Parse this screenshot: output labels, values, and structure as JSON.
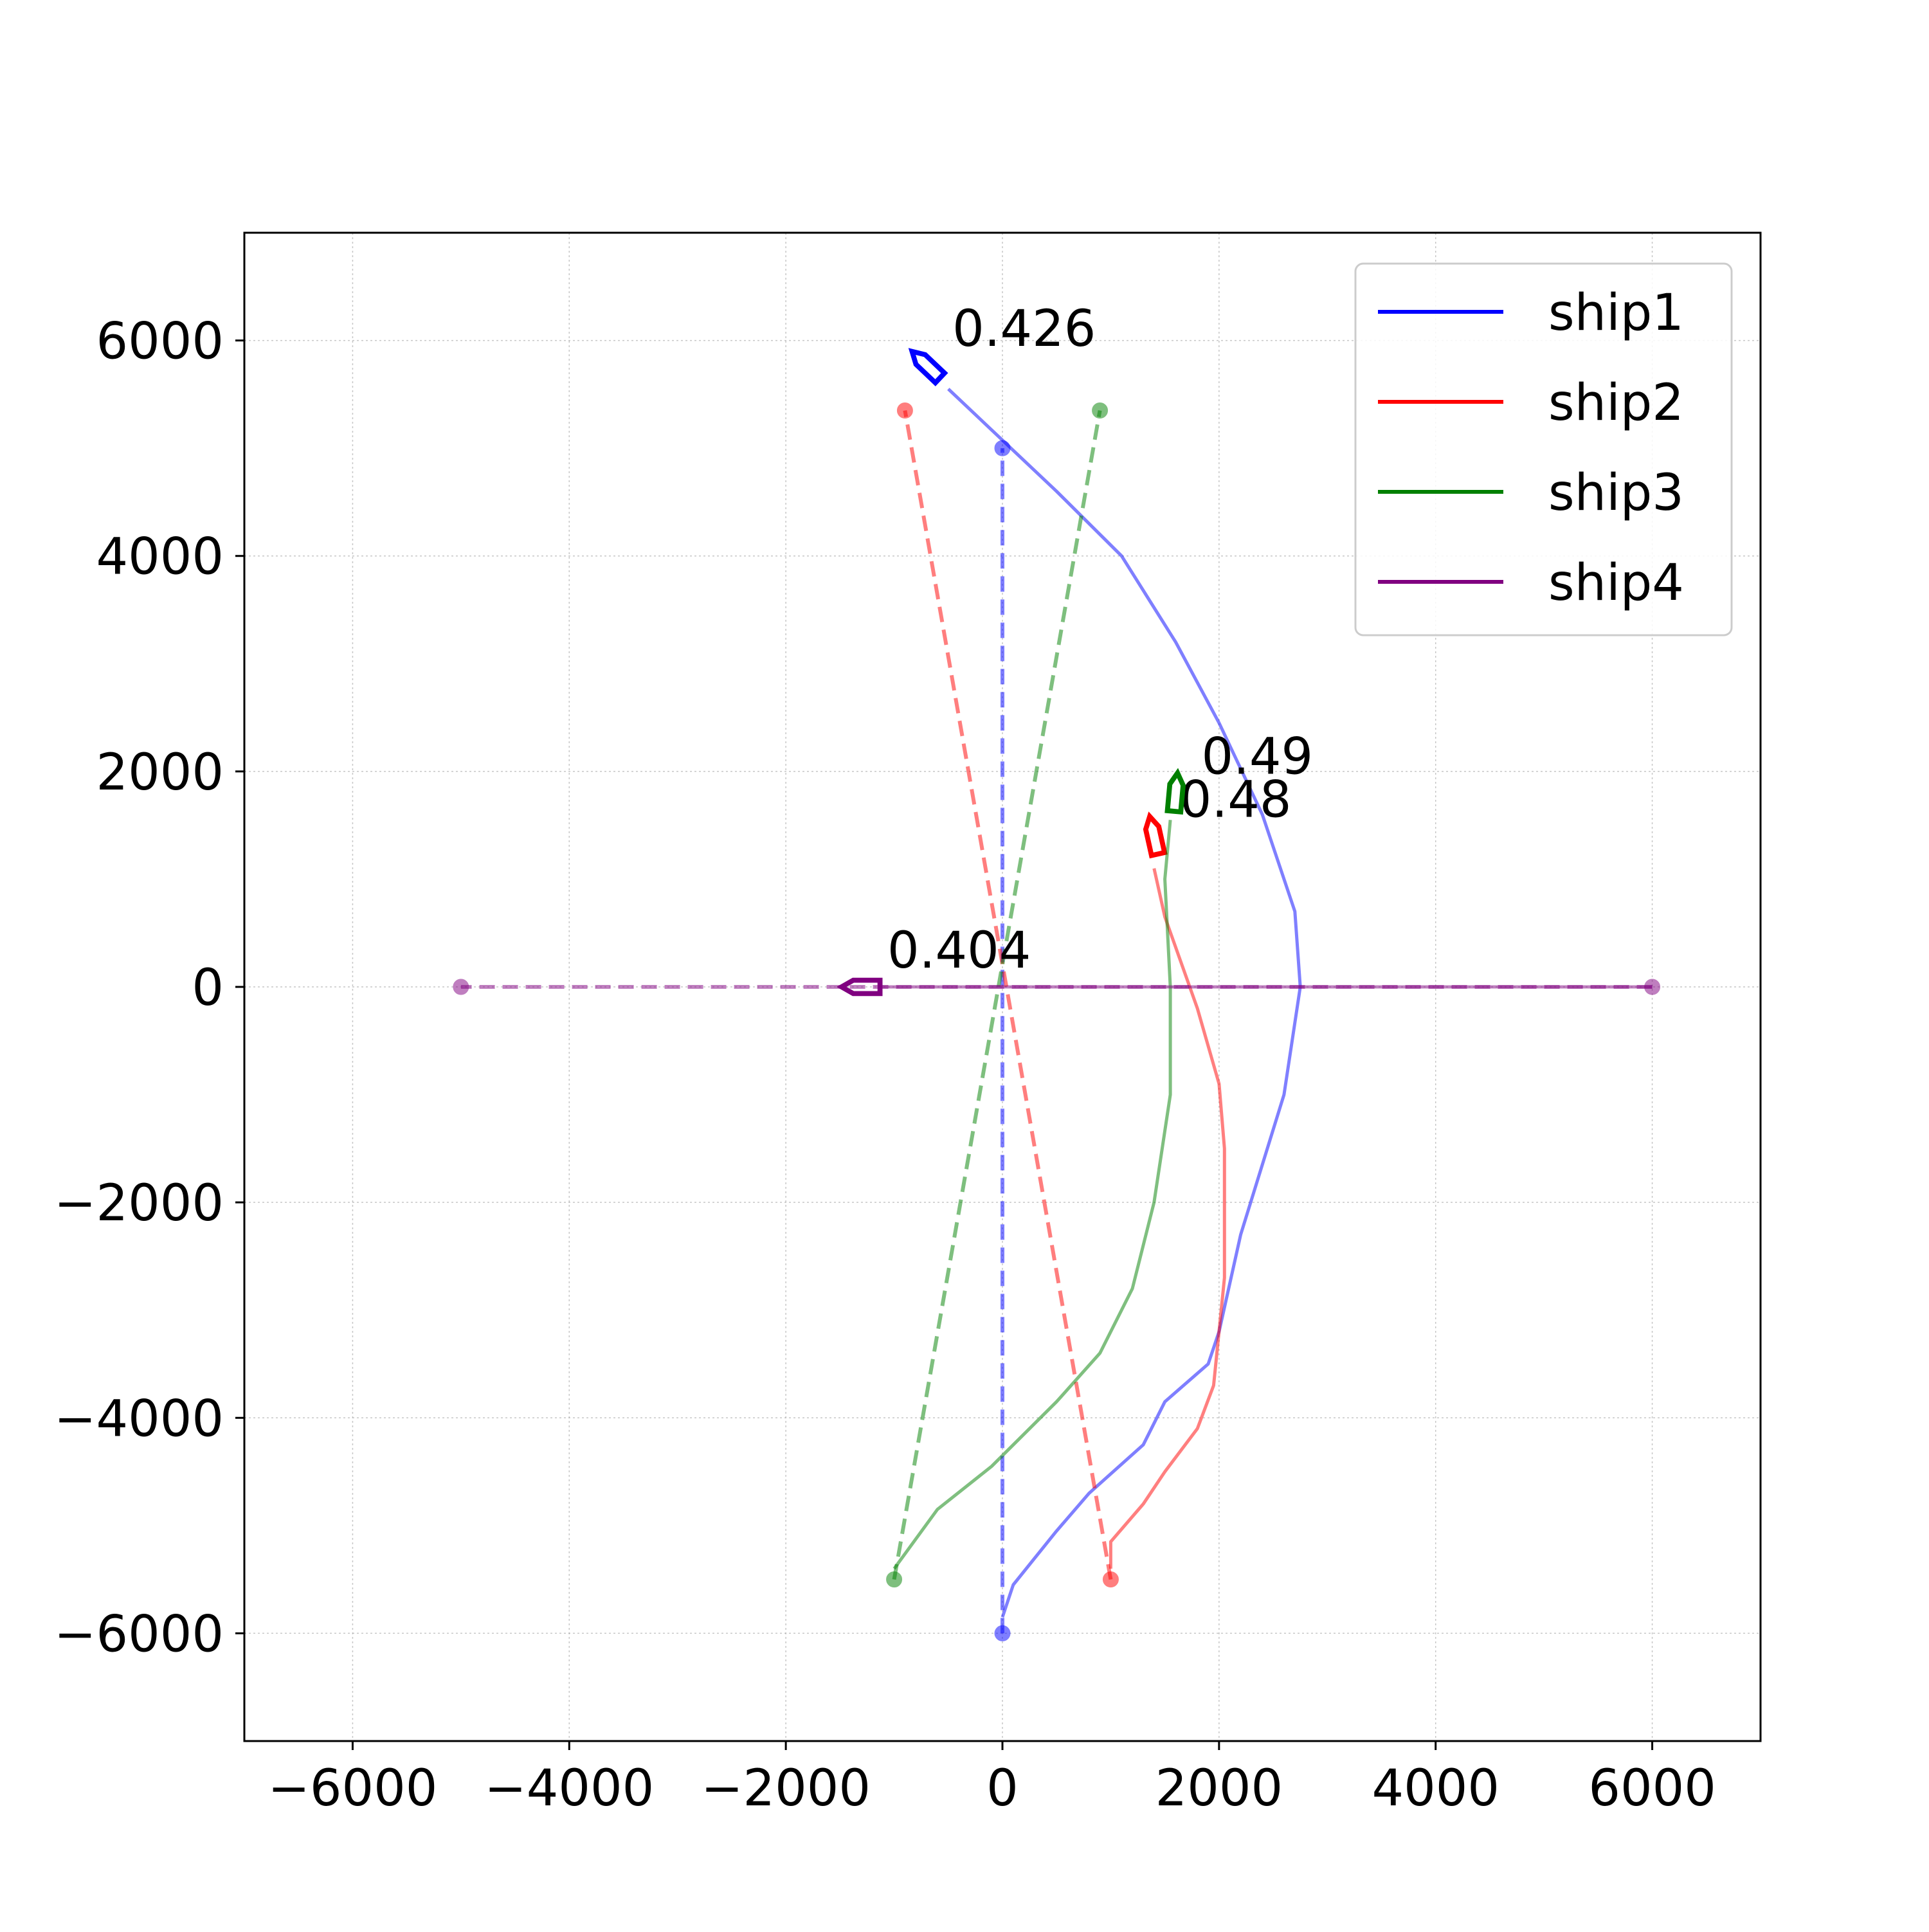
{
  "chart_data": {
    "type": "line",
    "title": "",
    "xlabel": "",
    "ylabel": "",
    "xlim": [
      -7000,
      7000
    ],
    "ylim": [
      -7000,
      7000
    ],
    "xticks": [
      -6000,
      -4000,
      -2000,
      0,
      2000,
      4000,
      6000
    ],
    "yticks": [
      -6000,
      -4000,
      -2000,
      0,
      2000,
      4000,
      6000
    ],
    "xtick_labels": [
      "−6000",
      "−4000",
      "−2000",
      "0",
      "2000",
      "4000",
      "6000"
    ],
    "ytick_labels": [
      "−6000",
      "−4000",
      "−2000",
      "0",
      "2000",
      "4000",
      "6000"
    ],
    "grid": true,
    "legend_position": "top-right",
    "series": [
      {
        "name": "ship1",
        "color": "#0000ff",
        "start": [
          0,
          -6000
        ],
        "goal": [
          0,
          5000
        ],
        "trajectory": [
          [
            0,
            -5850
          ],
          [
            100,
            -5550
          ],
          [
            300,
            -5300
          ],
          [
            500,
            -5050
          ],
          [
            800,
            -4700
          ],
          [
            1300,
            -4250
          ],
          [
            1500,
            -3850
          ],
          [
            1900,
            -3500
          ],
          [
            2000,
            -3200
          ],
          [
            2200,
            -2300
          ],
          [
            2600,
            -1000
          ],
          [
            2750,
            0
          ],
          [
            2700,
            700
          ],
          [
            2400,
            1600
          ],
          [
            2000,
            2450
          ],
          [
            1600,
            3200
          ],
          [
            1100,
            4000
          ],
          [
            500,
            4600
          ],
          [
            -500,
            5550
          ]
        ],
        "heading_marker": [
          -700,
          5770
        ],
        "annotation": "0.426"
      },
      {
        "name": "ship2",
        "color": "#ff0000",
        "start": [
          1000,
          -5500
        ],
        "goal": [
          -900,
          5350
        ],
        "trajectory": [
          [
            1000,
            -5400
          ],
          [
            1000,
            -5150
          ],
          [
            1300,
            -4800
          ],
          [
            1500,
            -4500
          ],
          [
            1800,
            -4100
          ],
          [
            1950,
            -3700
          ],
          [
            2050,
            -2700
          ],
          [
            2050,
            -2000
          ],
          [
            2050,
            -1500
          ],
          [
            2000,
            -900
          ],
          [
            1800,
            -200
          ],
          [
            1500,
            650
          ],
          [
            1400,
            1100
          ]
        ],
        "heading_marker": [
          1400,
          1400
        ],
        "annotation": "0.48"
      },
      {
        "name": "ship3",
        "color": "#008000",
        "start": [
          -1000,
          -5500
        ],
        "goal": [
          900,
          5350
        ],
        "trajectory": [
          [
            -1000,
            -5400
          ],
          [
            -600,
            -4850
          ],
          [
            -100,
            -4450
          ],
          [
            500,
            -3850
          ],
          [
            900,
            -3400
          ],
          [
            1200,
            -2800
          ],
          [
            1400,
            -2000
          ],
          [
            1550,
            -1000
          ],
          [
            1550,
            0
          ],
          [
            1500,
            1000
          ],
          [
            1550,
            1550
          ]
        ],
        "heading_marker": [
          1600,
          1800
        ],
        "annotation": "0.49"
      },
      {
        "name": "ship4",
        "color": "#800080",
        "start": [
          6000,
          0
        ],
        "goal": [
          -5000,
          0
        ],
        "trajectory": [
          [
            6000,
            0
          ],
          [
            -1150,
            0
          ]
        ],
        "heading_marker": [
          -1300,
          0
        ],
        "annotation": "0.404"
      }
    ]
  }
}
